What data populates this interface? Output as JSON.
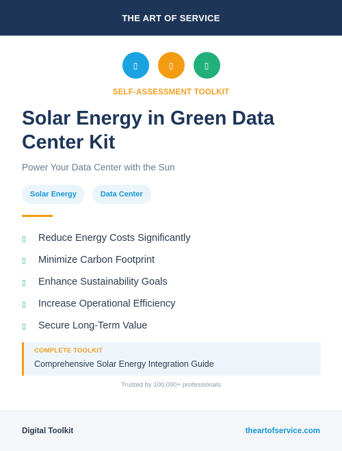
{
  "header": {
    "brand": "THE ART OF SERVICE"
  },
  "icons": [
    {
      "name": "solar-panel-icon",
      "glyph": "▯",
      "color": "#1aa3e0"
    },
    {
      "name": "lightning-icon",
      "glyph": "▯",
      "color": "#f39c12"
    },
    {
      "name": "leaf-icon",
      "glyph": "▯",
      "color": "#21b07a"
    }
  ],
  "kicker": "SELF-ASSESSMENT TOOLKIT",
  "title": "Solar Energy in Green Data Center Kit",
  "subtitle": "Power Your Data Center with the Sun",
  "tags": [
    "Solar Energy",
    "Data Center"
  ],
  "benefits": {
    "check_glyph": "▯",
    "items": [
      "Reduce Energy Costs Significantly",
      "Minimize Carbon Footprint",
      "Enhance Sustainability Goals",
      "Increase Operational Efficiency",
      "Secure Long-Term Value"
    ]
  },
  "callout": {
    "label": "COMPLETE TOOLKIT",
    "description": "Comprehensive Solar Energy Integration Guide"
  },
  "trusted": "Trusted by 100,000+ professionals",
  "footer": {
    "left": "Digital Toolkit",
    "right": "theartofservice.com"
  },
  "colors": {
    "navy": "#1d3557",
    "accent_orange": "#f39c12",
    "accent_blue": "#1aa3e0",
    "accent_green": "#21b07a"
  }
}
